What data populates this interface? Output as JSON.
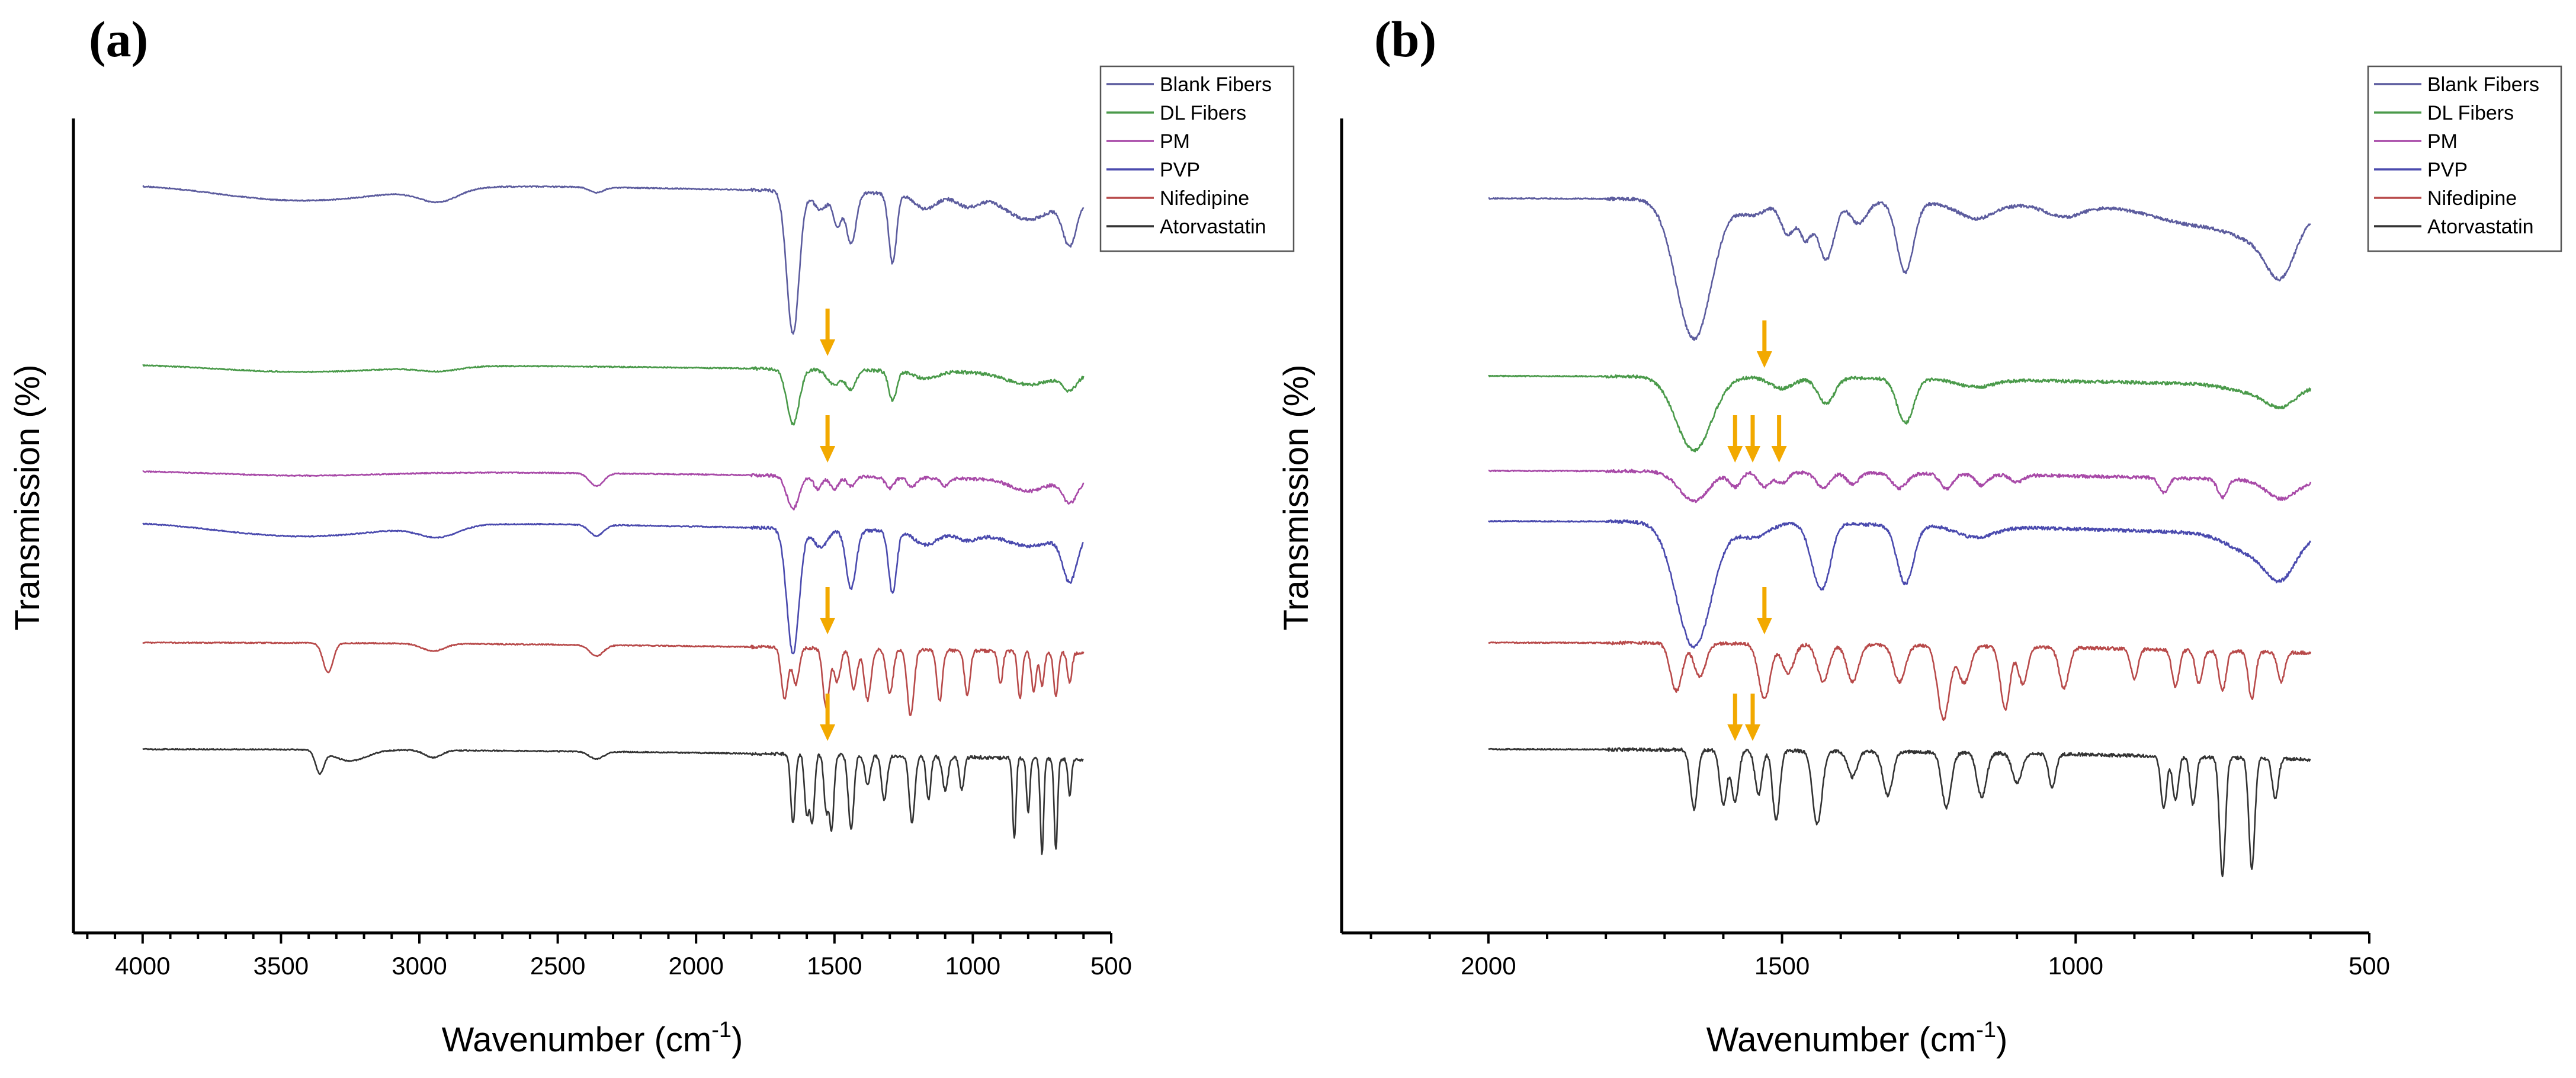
{
  "chart_data": [
    {
      "type": "line",
      "panel_label": "(a)",
      "xlabel_main": "Wavenumber (cm",
      "xlabel_sup": "-1",
      "xlabel_end": ")",
      "ylabel": "Transmission (%)",
      "xlim": [
        4250,
        500
      ],
      "reversed_x": true,
      "x_ticks": [
        4000,
        3500,
        3000,
        2500,
        2000,
        1500,
        1000,
        500
      ],
      "x_range_plotted": [
        4000,
        600
      ],
      "y_ticks_shown": false,
      "legend_position": "top-right",
      "series": [
        {
          "name": "Blank Fibers",
          "color": "#5c5c9e",
          "baseline": 9.3,
          "dips": [
            [
              3430,
              300,
              0.45
            ],
            [
              2930,
              70,
              0.35
            ],
            [
              2360,
              25,
              0.15
            ],
            [
              1650,
              22,
              3.9
            ],
            [
              1550,
              25,
              0.5
            ],
            [
              1490,
              15,
              0.9
            ],
            [
              1440,
              18,
              1.4
            ],
            [
              1290,
              14,
              1.9
            ],
            [
              1170,
              40,
              0.4
            ],
            [
              1020,
              40,
              0.3
            ],
            [
              800,
              80,
              0.6
            ],
            [
              650,
              25,
              1.2
            ]
          ]
        },
        {
          "name": "DL Fibers",
          "color": "#4a9a4a",
          "baseline": 6.2,
          "dips": [
            [
              3430,
              300,
              0.2
            ],
            [
              2930,
              70,
              0.12
            ],
            [
              1650,
              22,
              1.5
            ],
            [
              1500,
              25,
              0.4
            ],
            [
              1440,
              18,
              0.5
            ],
            [
              1290,
              14,
              0.8
            ],
            [
              1170,
              40,
              0.2
            ],
            [
              800,
              80,
              0.3
            ],
            [
              650,
              25,
              0.4
            ]
          ]
        },
        {
          "name": "PM",
          "color": "#a84aa8",
          "baseline": 4.75,
          "dips": [
            [
              3430,
              300,
              0.12
            ],
            [
              2360,
              25,
              0.35
            ],
            [
              1650,
              22,
              0.9
            ],
            [
              1560,
              15,
              0.35
            ],
            [
              1500,
              15,
              0.35
            ],
            [
              1440,
              15,
              0.25
            ],
            [
              1300,
              15,
              0.3
            ],
            [
              1220,
              15,
              0.25
            ],
            [
              1100,
              15,
              0.2
            ],
            [
              800,
              60,
              0.3
            ],
            [
              650,
              25,
              0.6
            ]
          ]
        },
        {
          "name": "PVP",
          "color": "#4a4aae",
          "baseline": 3.75,
          "dips": [
            [
              3430,
              300,
              0.4
            ],
            [
              2930,
              70,
              0.3
            ],
            [
              2360,
              25,
              0.3
            ],
            [
              1650,
              22,
              3.4
            ],
            [
              1550,
              25,
              0.5
            ],
            [
              1440,
              18,
              1.6
            ],
            [
              1290,
              14,
              1.7
            ],
            [
              1170,
              40,
              0.35
            ],
            [
              1020,
              40,
              0.2
            ],
            [
              800,
              80,
              0.3
            ],
            [
              650,
              25,
              1.2
            ]
          ]
        },
        {
          "name": "Nifedipine",
          "color": "#b84a4a",
          "baseline": 2.05,
          "dips": [
            [
              3330,
              18,
              0.8
            ],
            [
              2950,
              40,
              0.2
            ],
            [
              2360,
              25,
              0.3
            ],
            [
              1680,
              12,
              1.4
            ],
            [
              1640,
              12,
              1.0
            ],
            [
              1530,
              12,
              1.6
            ],
            [
              1490,
              12,
              0.9
            ],
            [
              1430,
              12,
              1.1
            ],
            [
              1380,
              12,
              1.4
            ],
            [
              1300,
              12,
              1.2
            ],
            [
              1225,
              12,
              1.8
            ],
            [
              1120,
              10,
              1.4
            ],
            [
              1020,
              10,
              1.2
            ],
            [
              900,
              8,
              0.9
            ],
            [
              830,
              8,
              1.3
            ],
            [
              780,
              8,
              1.1
            ],
            [
              750,
              8,
              0.9
            ],
            [
              700,
              8,
              1.2
            ],
            [
              650,
              8,
              0.8
            ]
          ]
        },
        {
          "name": "Atorvastatin",
          "color": "#333333",
          "baseline": 0.3,
          "dips": [
            [
              3360,
              15,
              0.6
            ],
            [
              3250,
              60,
              0.3
            ],
            [
              2950,
              30,
              0.2
            ],
            [
              2360,
              25,
              0.2
            ],
            [
              1650,
              8,
              1.9
            ],
            [
              1600,
              8,
              1.6
            ],
            [
              1580,
              8,
              1.8
            ],
            [
              1530,
              8,
              1.5
            ],
            [
              1510,
              8,
              2.0
            ],
            [
              1440,
              10,
              2.0
            ],
            [
              1380,
              10,
              0.8
            ],
            [
              1320,
              10,
              1.2
            ],
            [
              1220,
              10,
              1.8
            ],
            [
              1160,
              8,
              1.2
            ],
            [
              1100,
              10,
              0.9
            ],
            [
              1040,
              8,
              0.9
            ],
            [
              850,
              6,
              2.2
            ],
            [
              800,
              6,
              1.5
            ],
            [
              750,
              6,
              2.6
            ],
            [
              700,
              6,
              2.5
            ],
            [
              650,
              6,
              1.0
            ]
          ]
        }
      ],
      "annotations": [
        {
          "type": "arrow",
          "wavenumber": 1525,
          "series": "DL Fibers"
        },
        {
          "type": "arrow",
          "wavenumber": 1525,
          "series": "PM"
        },
        {
          "type": "arrow",
          "wavenumber": 1525,
          "series": "Nifedipine"
        },
        {
          "type": "arrow",
          "wavenumber": 1525,
          "series": "Atorvastatin"
        }
      ]
    },
    {
      "type": "line",
      "panel_label": "(b)",
      "xlabel_main": "Wavenumber (cm",
      "xlabel_sup": "-1",
      "xlabel_end": ")",
      "ylabel": "Transmission (%)",
      "xlim": [
        2250,
        500
      ],
      "reversed_x": true,
      "x_ticks": [
        2000,
        1500,
        1000,
        500
      ],
      "x_range_plotted": [
        2000,
        600
      ],
      "y_ticks_shown": false,
      "legend_position": "top-right",
      "series": [
        {
          "name": "Blank Fibers",
          "color": "#5c5c9e",
          "baseline": 9.3,
          "dips": [
            [
              1650,
              30,
              3.8
            ],
            [
              1550,
              25,
              0.4
            ],
            [
              1490,
              12,
              0.9
            ],
            [
              1460,
              10,
              1.0
            ],
            [
              1425,
              14,
              1.6
            ],
            [
              1370,
              14,
              0.6
            ],
            [
              1290,
              14,
              1.9
            ],
            [
              1170,
              30,
              0.4
            ],
            [
              1020,
              30,
              0.3
            ],
            [
              800,
              60,
              0.4
            ],
            [
              700,
              40,
              0.6
            ],
            [
              650,
              25,
              1.5
            ]
          ]
        },
        {
          "name": "DL Fibers",
          "color": "#4a9a4a",
          "baseline": 6.25,
          "dips": [
            [
              1650,
              30,
              2.0
            ],
            [
              1500,
              20,
              0.3
            ],
            [
              1425,
              14,
              0.7
            ],
            [
              1290,
              14,
              1.2
            ],
            [
              1170,
              30,
              0.2
            ],
            [
              700,
              40,
              0.2
            ],
            [
              650,
              25,
              0.5
            ]
          ]
        },
        {
          "name": "PM",
          "color": "#a84aa8",
          "baseline": 4.75,
          "dips": [
            [
              1650,
              25,
              0.8
            ],
            [
              1580,
              10,
              0.4
            ],
            [
              1530,
              10,
              0.4
            ],
            [
              1500,
              10,
              0.3
            ],
            [
              1430,
              12,
              0.4
            ],
            [
              1380,
              10,
              0.3
            ],
            [
              1300,
              12,
              0.4
            ],
            [
              1220,
              10,
              0.4
            ],
            [
              1160,
              10,
              0.3
            ],
            [
              1100,
              10,
              0.2
            ],
            [
              850,
              8,
              0.4
            ],
            [
              750,
              8,
              0.5
            ],
            [
              650,
              25,
              0.5
            ]
          ]
        },
        {
          "name": "PVP",
          "color": "#4a4aae",
          "baseline": 3.85,
          "dips": [
            [
              1650,
              30,
              3.4
            ],
            [
              1550,
              25,
              0.4
            ],
            [
              1440,
              14,
              1.2
            ],
            [
              1425,
              12,
              0.9
            ],
            [
              1290,
              14,
              1.6
            ],
            [
              1170,
              30,
              0.3
            ],
            [
              700,
              40,
              0.5
            ],
            [
              650,
              25,
              1.0
            ]
          ]
        },
        {
          "name": "Nifedipine",
          "color": "#b84a4a",
          "baseline": 2.05,
          "dips": [
            [
              1680,
              10,
              1.3
            ],
            [
              1640,
              10,
              0.9
            ],
            [
              1530,
              10,
              1.5
            ],
            [
              1490,
              10,
              0.8
            ],
            [
              1430,
              10,
              1.0
            ],
            [
              1380,
              10,
              1.0
            ],
            [
              1300,
              10,
              1.0
            ],
            [
              1225,
              10,
              2.0
            ],
            [
              1190,
              10,
              1.0
            ],
            [
              1120,
              8,
              1.7
            ],
            [
              1090,
              8,
              1.0
            ],
            [
              1020,
              8,
              1.1
            ],
            [
              900,
              6,
              0.8
            ],
            [
              830,
              6,
              1.0
            ],
            [
              790,
              6,
              0.9
            ],
            [
              750,
              6,
              1.1
            ],
            [
              700,
              6,
              1.3
            ],
            [
              650,
              6,
              0.8
            ]
          ]
        },
        {
          "name": "Atorvastatin",
          "color": "#333333",
          "baseline": 0.3,
          "dips": [
            [
              1650,
              6,
              1.6
            ],
            [
              1600,
              6,
              1.5
            ],
            [
              1580,
              6,
              1.4
            ],
            [
              1540,
              6,
              1.2
            ],
            [
              1510,
              6,
              1.9
            ],
            [
              1440,
              8,
              2.0
            ],
            [
              1380,
              8,
              0.7
            ],
            [
              1320,
              8,
              1.2
            ],
            [
              1220,
              8,
              1.5
            ],
            [
              1160,
              8,
              1.2
            ],
            [
              1100,
              8,
              0.8
            ],
            [
              1040,
              6,
              0.9
            ],
            [
              850,
              5,
              1.4
            ],
            [
              830,
              5,
              1.2
            ],
            [
              800,
              5,
              1.3
            ],
            [
              750,
              5,
              3.2
            ],
            [
              700,
              5,
              3.0
            ],
            [
              660,
              5,
              1.1
            ]
          ]
        }
      ],
      "annotations": [
        {
          "type": "arrow",
          "wavenumber": 1530,
          "series": "DL Fibers"
        },
        {
          "type": "arrow",
          "wavenumber": 1580,
          "series": "PM"
        },
        {
          "type": "arrow",
          "wavenumber": 1550,
          "series": "PM"
        },
        {
          "type": "arrow",
          "wavenumber": 1505,
          "series": "PM"
        },
        {
          "type": "arrow",
          "wavenumber": 1530,
          "series": "Nifedipine"
        },
        {
          "type": "arrow",
          "wavenumber": 1580,
          "series": "Atorvastatin"
        },
        {
          "type": "arrow",
          "wavenumber": 1550,
          "series": "Atorvastatin"
        }
      ]
    }
  ]
}
